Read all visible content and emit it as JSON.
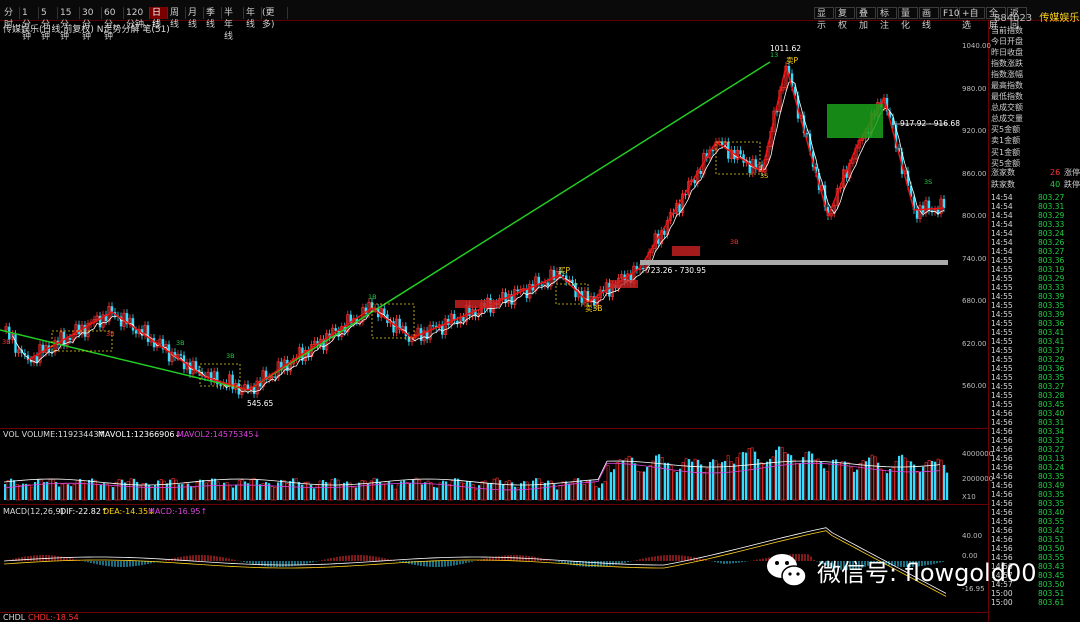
{
  "toolbar": {
    "periods": [
      "分时",
      "1分钟",
      "5分钟",
      "15分钟",
      "30分钟",
      "60分钟",
      "120分钟",
      "日线",
      "周线",
      "月线",
      "季线",
      "半年线",
      "年线"
    ],
    "more_label": "更多",
    "active_period": "日线",
    "right_buttons": [
      "显示",
      "复权",
      "叠加",
      "标注",
      "量化",
      "画线",
      "F10",
      "+自选",
      "全屏",
      "返回"
    ]
  },
  "stock": {
    "code": "884023",
    "name": "传媒娱乐"
  },
  "chart_title": "传媒娱乐(日线,前复权) N走势分解 笔(51)",
  "price_axis": {
    "ticks": [
      "1040.00",
      "980.00",
      "920.00",
      "860.00",
      "800.00",
      "740.00",
      "680.00",
      "620.00",
      "560.00"
    ]
  },
  "annotations": {
    "high": "1011.62",
    "low": "545.65",
    "zone_upper": "917.92 - 916.68",
    "zone_lower": "723.26 - 730.95",
    "buy_label": "买P",
    "sell_label": "卖P",
    "sell3_label": "卖3B",
    "num_labels": [
      "3B",
      "13",
      "3B",
      "3B",
      "3S",
      "3S",
      "1B",
      "3B",
      "3B"
    ]
  },
  "volume_panel": {
    "label": "VOL VOLUME:11923443↑",
    "mavol1": "MAVOL1:12366906↓",
    "mavol2": "MAVOL2:14575345↓",
    "ticks": [
      "4000000",
      "2000000"
    ],
    "unit": "X10",
    "colors": {
      "up": "#ff3333",
      "down": "#33ddff",
      "mavol1": "#ffffff",
      "mavol2": "#dd44dd"
    }
  },
  "macd_panel": {
    "label": "MACD(12,26,9)",
    "dif": "DIF:-22.82↑",
    "dea": "DEA:-14.35↓",
    "macd": "MACD:-16.95↑",
    "ticks": [
      "40.00",
      "0.00",
      "-16.95"
    ]
  },
  "chdl_panel": {
    "label": "CHDL",
    "value": "CHDL:-18.54"
  },
  "quote_panel": {
    "fields": [
      "当前指数",
      "今日开盘",
      "昨日收盘",
      "指数涨跌",
      "指数涨幅",
      "最高指数",
      "最低指数",
      "总成交额",
      "总成交量"
    ],
    "amounts": [
      "买5金额",
      "卖1金额",
      "买1金额",
      "买5金额"
    ],
    "up_label": "涨家数",
    "up_count": "26",
    "up_suffix": "涨停",
    "down_label": "跌家数",
    "down_count": "40",
    "down_suffix": "跌停"
  },
  "ticks_table": [
    [
      "14:54",
      "803.27"
    ],
    [
      "14:54",
      "803.31"
    ],
    [
      "14:54",
      "803.29"
    ],
    [
      "14:54",
      "803.33"
    ],
    [
      "14:54",
      "803.24"
    ],
    [
      "14:54",
      "803.26"
    ],
    [
      "14:54",
      "803.27"
    ],
    [
      "14:55",
      "803.36"
    ],
    [
      "14:55",
      "803.19"
    ],
    [
      "14:55",
      "803.29"
    ],
    [
      "14:55",
      "803.33"
    ],
    [
      "14:55",
      "803.39"
    ],
    [
      "14:55",
      "803.35"
    ],
    [
      "14:55",
      "803.39"
    ],
    [
      "14:55",
      "803.36"
    ],
    [
      "14:55",
      "803.41"
    ],
    [
      "14:55",
      "803.41"
    ],
    [
      "14:55",
      "803.37"
    ],
    [
      "14:55",
      "803.29"
    ],
    [
      "14:55",
      "803.36"
    ],
    [
      "14:55",
      "803.35"
    ],
    [
      "14:55",
      "803.27"
    ],
    [
      "14:55",
      "803.28"
    ],
    [
      "14:55",
      "803.45"
    ],
    [
      "14:56",
      "803.40"
    ],
    [
      "14:56",
      "803.31"
    ],
    [
      "14:56",
      "803.34"
    ],
    [
      "14:56",
      "803.32"
    ],
    [
      "14:56",
      "803.27"
    ],
    [
      "14:56",
      "803.13"
    ],
    [
      "14:56",
      "803.24"
    ],
    [
      "14:56",
      "803.35"
    ],
    [
      "14:56",
      "803.49"
    ],
    [
      "14:56",
      "803.35"
    ],
    [
      "14:56",
      "803.35"
    ],
    [
      "14:56",
      "803.40"
    ],
    [
      "14:56",
      "803.55"
    ],
    [
      "14:56",
      "803.42"
    ],
    [
      "14:56",
      "803.51"
    ],
    [
      "14:56",
      "803.50"
    ],
    [
      "14:56",
      "803.55"
    ],
    [
      "14:56",
      "803.43"
    ],
    [
      "14:57",
      "803.45"
    ],
    [
      "14:57",
      "803.50"
    ],
    [
      "15:00",
      "803.51"
    ],
    [
      "15:00",
      "803.61"
    ]
  ],
  "watermark": {
    "text": "微信号: flowgold00"
  },
  "colors": {
    "bg": "#000000",
    "zigzag": "#ee1111",
    "trend": "#22cc22",
    "up": "#ff3333",
    "down": "#33ddff",
    "ma": "#ffffff",
    "zone": "#1aa01a"
  }
}
